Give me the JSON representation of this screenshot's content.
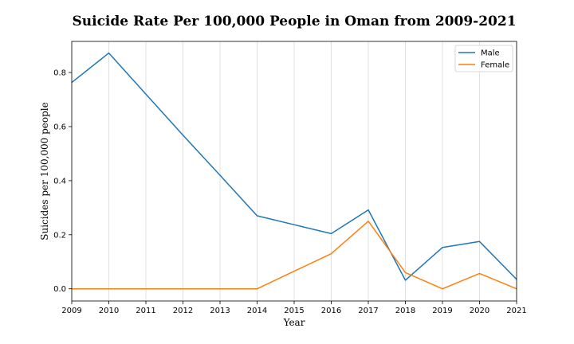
{
  "chart_data": {
    "type": "line",
    "title": "Suicide Rate Per 100,000 People in Oman from 2009-2021",
    "xlabel": "Year",
    "ylabel": "Suicides per 100,000 people",
    "x": [
      2009,
      2010,
      2011,
      2012,
      2013,
      2014,
      2015,
      2016,
      2017,
      2018,
      2019,
      2020,
      2021
    ],
    "xlim": [
      2009,
      2021
    ],
    "ylim": [
      -0.045,
      0.915
    ],
    "yticks": [
      "0.0",
      "0.2",
      "0.4",
      "0.6",
      "0.8"
    ],
    "grid": "vertical",
    "legend_position": "top-right",
    "series": [
      {
        "name": "Male",
        "color": "#1f77b4",
        "values": [
          0.763,
          0.872,
          0.72,
          0.568,
          0.42,
          0.27,
          0.237,
          0.204,
          0.292,
          0.032,
          0.153,
          0.175,
          0.035
        ]
      },
      {
        "name": "Female",
        "color": "#ff7f0e",
        "values": [
          0.0,
          0.0,
          0.0,
          0.0,
          0.0,
          0.0,
          0.065,
          0.13,
          0.25,
          0.06,
          0.0,
          0.057,
          0.0
        ]
      }
    ]
  }
}
